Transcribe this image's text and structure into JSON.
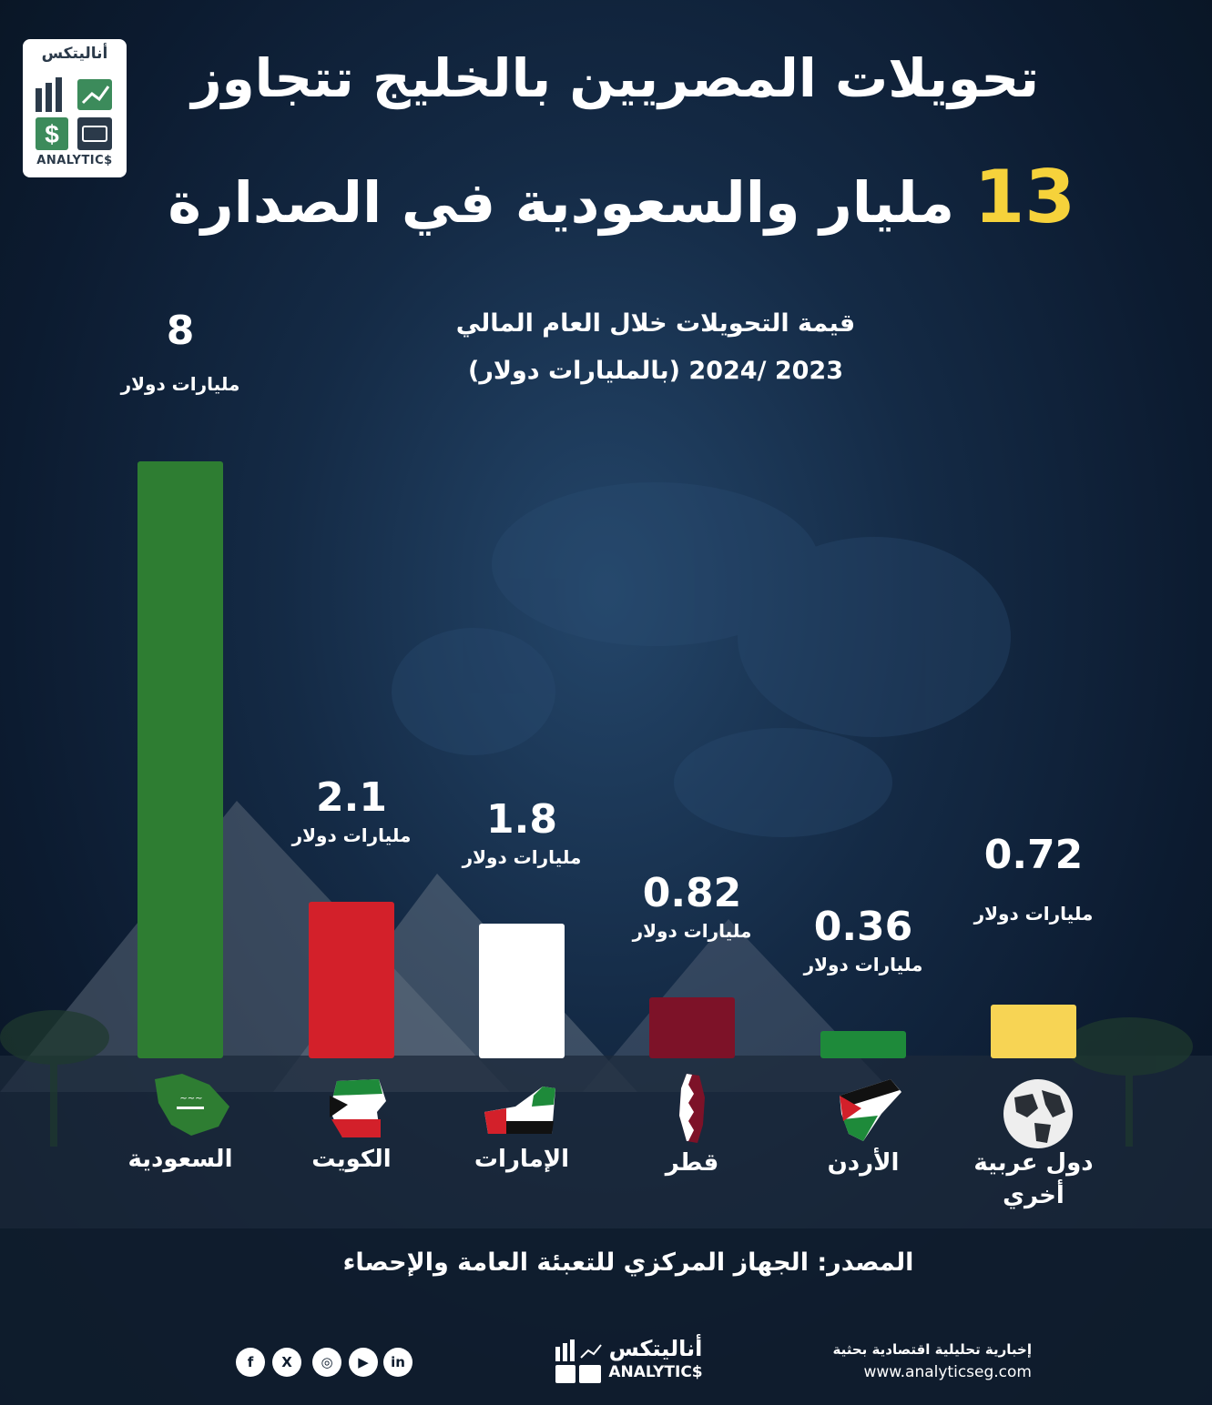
{
  "logo": {
    "ar": "أناليتكس",
    "en": "ANALYTIC$"
  },
  "title": {
    "line1": "تحويلات المصريين بالخليج تتجاوز",
    "number": "13",
    "line2": "مليار والسعودية في الصدارة"
  },
  "subtitle": {
    "line1": "قيمة التحويلات خلال العام المالي",
    "line2": "2023 /2024 (بالمليارات دولار)"
  },
  "chart_data": {
    "type": "bar",
    "categories": [
      "السعودية",
      "الكويت",
      "الإمارات",
      "قطر",
      "الأردن",
      "دول عربية أخري"
    ],
    "values": [
      8,
      2.1,
      1.8,
      0.82,
      0.36,
      0.72
    ],
    "value_labels": [
      "8",
      "2.1",
      "1.8",
      "0.82",
      "0.36",
      "0.72"
    ],
    "unit_label": "مليارات دولار",
    "title": "قيمة التحويلات خلال العام المالي 2023 /2024 (بالمليارات دولار)",
    "xlabel": "",
    "ylabel": "",
    "bar_colors": [
      "#2e7d32",
      "#d3202a",
      "#ffffff",
      "#7d1228",
      "#1e8a3a",
      "#f7d454"
    ],
    "grid": false,
    "ylim": [
      0,
      8
    ]
  },
  "source": "المصدر: الجهاز المركزي للتعبئة العامة والإحصاء",
  "footer": {
    "note": "إخبارية تحليلية اقتصادية بحثية",
    "url": "www.analyticseg.com",
    "logo_ar": "أناليتكس",
    "logo_en": "ANALYTIC$",
    "social": [
      {
        "name": "facebook",
        "glyph": "f"
      },
      {
        "name": "x",
        "glyph": "X"
      },
      {
        "name": "instagram",
        "glyph": "◎"
      },
      {
        "name": "youtube",
        "glyph": "▶"
      },
      {
        "name": "linkedin",
        "glyph": "in"
      }
    ]
  }
}
